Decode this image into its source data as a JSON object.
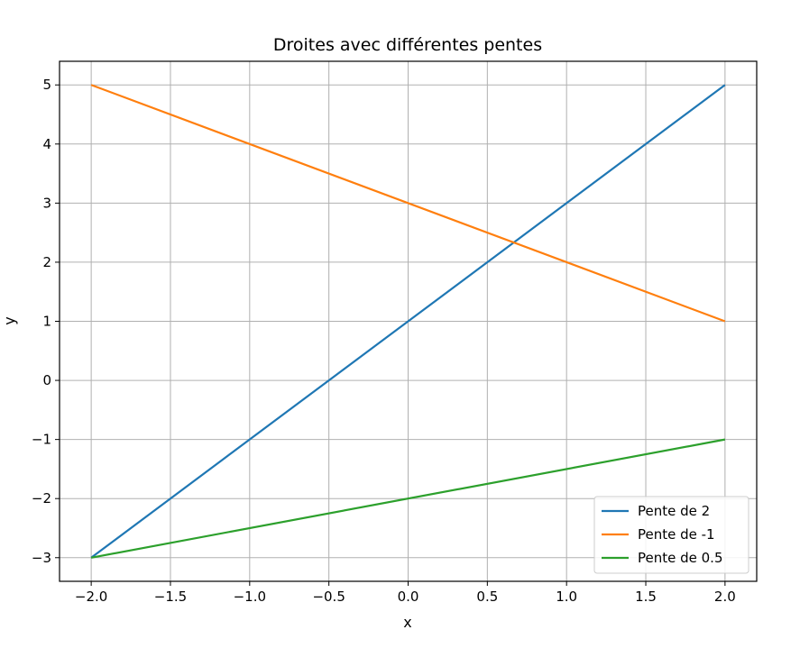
{
  "chart_data": {
    "type": "line",
    "title": "Droites avec différentes pentes",
    "xlabel": "x",
    "ylabel": "y",
    "xlim": [
      -2.2,
      2.2
    ],
    "ylim": [
      -3.4,
      5.4
    ],
    "x_ticks": [
      -2.0,
      -1.5,
      -1.0,
      -0.5,
      0.0,
      0.5,
      1.0,
      1.5,
      2.0
    ],
    "x_tick_labels": [
      "−2.0",
      "−1.5",
      "−1.0",
      "−0.5",
      "0.0",
      "0.5",
      "1.0",
      "1.5",
      "2.0"
    ],
    "y_ticks": [
      -3,
      -2,
      -1,
      0,
      1,
      2,
      3,
      4,
      5
    ],
    "y_tick_labels": [
      "−3",
      "−2",
      "−1",
      "0",
      "1",
      "2",
      "3",
      "4",
      "5"
    ],
    "grid": true,
    "legend_position": "bottom-right",
    "series": [
      {
        "name": "Pente de 2",
        "color": "#1f77b4",
        "x": [
          -2,
          2
        ],
        "y": [
          -3,
          5
        ]
      },
      {
        "name": "Pente de -1",
        "color": "#ff7f0e",
        "x": [
          -2,
          2
        ],
        "y": [
          5,
          1
        ]
      },
      {
        "name": "Pente de 0.5",
        "color": "#2ca02c",
        "x": [
          -2,
          2
        ],
        "y": [
          -3,
          -1
        ]
      }
    ]
  }
}
